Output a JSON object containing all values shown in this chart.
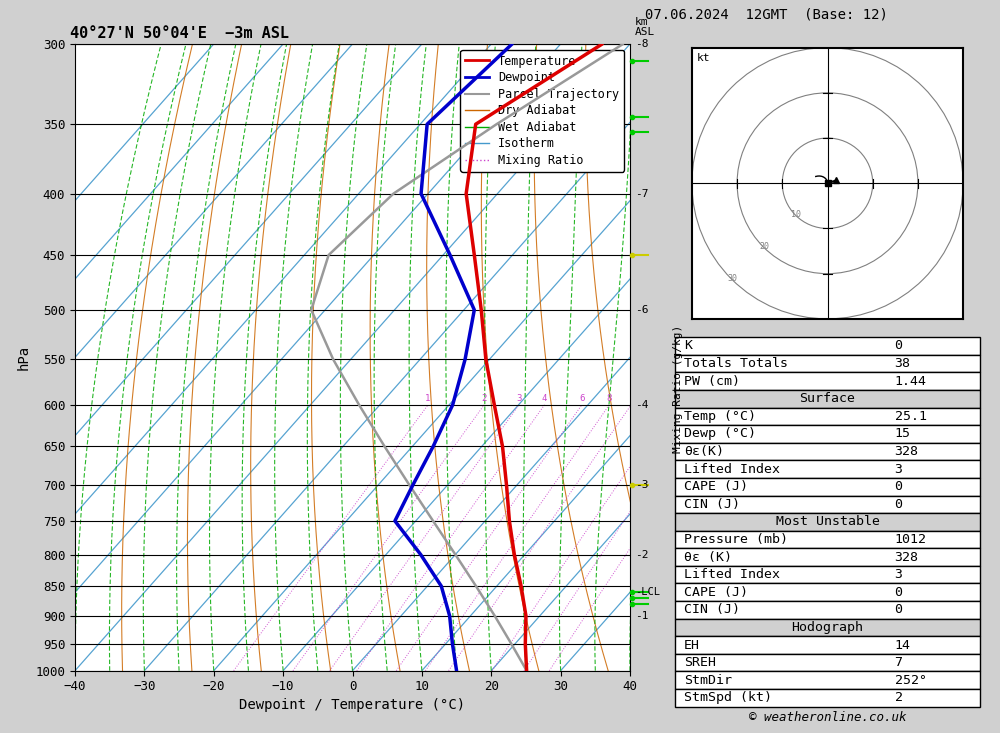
{
  "title_left": "40°27'N 50°04'E  −3m ASL",
  "title_right": "07.06.2024  12GMT  (Base: 12)",
  "xlabel": "Dewpoint / Temperature (°C)",
  "ylabel_left": "hPa",
  "p_min": 300,
  "p_max": 1000,
  "T_min": -40,
  "T_max": 40,
  "skew_factor": 1.0,
  "pressure_levels": [
    300,
    350,
    400,
    450,
    500,
    550,
    600,
    650,
    700,
    750,
    800,
    850,
    900,
    950,
    1000
  ],
  "temp_pressure": [
    1000,
    950,
    900,
    850,
    800,
    750,
    700,
    650,
    600,
    550,
    500,
    450,
    400,
    350,
    300
  ],
  "temp_values": [
    25.1,
    21.5,
    18.0,
    13.5,
    8.5,
    3.5,
    -1.5,
    -7.0,
    -13.5,
    -20.5,
    -27.5,
    -35.5,
    -44.5,
    -52.0,
    -44.0
  ],
  "dewp_pressure": [
    1000,
    950,
    900,
    850,
    800,
    750,
    700,
    650,
    600,
    550,
    500,
    450,
    400,
    350,
    300
  ],
  "dewp_values": [
    15.0,
    11.0,
    7.0,
    2.0,
    -5.0,
    -13.0,
    -15.0,
    -17.0,
    -19.5,
    -23.5,
    -28.5,
    -39.0,
    -51.0,
    -59.0,
    -57.0
  ],
  "parcel_pressure": [
    1000,
    950,
    900,
    850,
    800,
    750,
    700,
    650,
    600,
    550,
    500,
    450,
    400,
    350,
    300
  ],
  "parcel_values": [
    25.1,
    19.5,
    13.5,
    7.0,
    0.0,
    -7.5,
    -15.5,
    -24.0,
    -33.0,
    -42.5,
    -52.0,
    -56.5,
    -55.0,
    -49.0,
    -41.0
  ],
  "mixing_ratio_vals": [
    1,
    2,
    3,
    4,
    6,
    8,
    10,
    15,
    20,
    25
  ],
  "km_label_p": [
    900,
    800,
    700,
    600,
    500,
    400,
    300
  ],
  "km_label_v": [
    1,
    2,
    3,
    4,
    6,
    7,
    8
  ],
  "lcl_p": 860,
  "colors": {
    "temperature": "#dd0000",
    "dewpoint": "#0000cc",
    "parcel": "#999999",
    "dry_adiabat": "#cc6600",
    "wet_adiabat": "#00aa00",
    "isotherm": "#4499cc",
    "mixing_ratio": "#cc44cc",
    "background": "#ffffff"
  },
  "stats": {
    "K": "0",
    "Totals Totals": "38",
    "PW (cm)": "1.44",
    "surface_rows": [
      [
        "Temp (°C)",
        "25.1"
      ],
      [
        "Dewp (°C)",
        "15"
      ],
      [
        "θε(K)",
        "328"
      ],
      [
        "Lifted Index",
        "3"
      ],
      [
        "CAPE (J)",
        "0"
      ],
      [
        "CIN (J)",
        "0"
      ]
    ],
    "unstable_rows": [
      [
        "Pressure (mb)",
        "1012"
      ],
      [
        "θε (K)",
        "328"
      ],
      [
        "Lifted Index",
        "3"
      ],
      [
        "CAPE (J)",
        "0"
      ],
      [
        "CIN (J)",
        "0"
      ]
    ],
    "hodo_rows": [
      [
        "EH",
        "14"
      ],
      [
        "SREH",
        "7"
      ],
      [
        "StmDir",
        "252°"
      ],
      [
        "StmSpd (kt)",
        "2"
      ]
    ]
  }
}
